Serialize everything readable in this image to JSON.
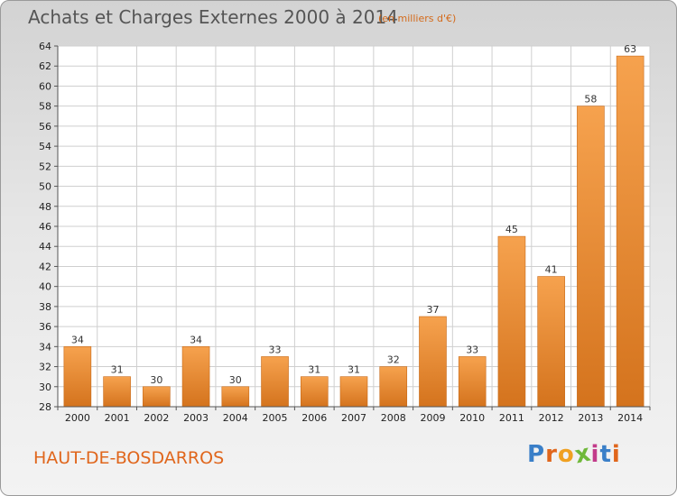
{
  "header": {
    "title": "Achats et Charges Externes 2000 à 2014",
    "subtitle": "(en milliers d'€)"
  },
  "footer": {
    "commune": "HAUT-DE-BOSDARROS",
    "logo_letters": [
      "P",
      "r",
      "o",
      "x",
      "i",
      "t",
      "i"
    ]
  },
  "colors": {
    "bar_light": "#f6a24e",
    "bar_dark": "#d4731d",
    "title": "#555555",
    "accent": "#e0661c"
  },
  "chart_data": {
    "type": "bar",
    "title": "Achats et Charges Externes 2000 à 2014",
    "subtitle": "(en milliers d'€)",
    "categories": [
      "2000",
      "2001",
      "2002",
      "2003",
      "2004",
      "2005",
      "2006",
      "2007",
      "2008",
      "2009",
      "2010",
      "2011",
      "2012",
      "2013",
      "2014"
    ],
    "values": [
      34,
      31,
      30,
      34,
      30,
      33,
      31,
      31,
      32,
      37,
      33,
      45,
      41,
      58,
      63
    ],
    "ylim": [
      28,
      64
    ],
    "yticks": [
      28,
      30,
      32,
      34,
      36,
      38,
      40,
      42,
      44,
      46,
      48,
      50,
      52,
      54,
      56,
      58,
      60,
      62,
      64
    ],
    "grid": true,
    "xlabel": "",
    "ylabel": ""
  }
}
